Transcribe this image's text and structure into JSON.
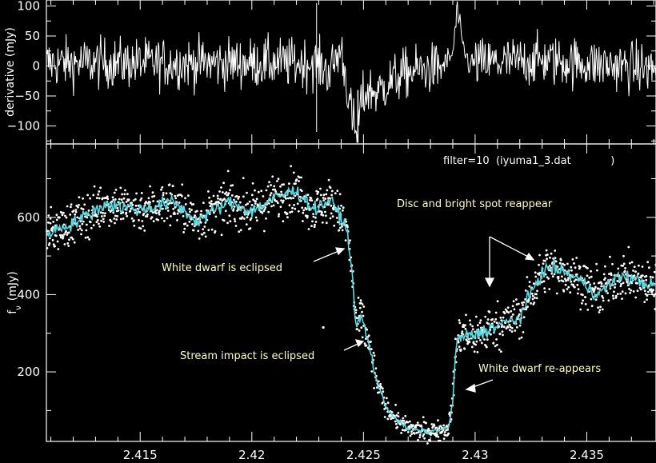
{
  "chart_data": [
    {
      "type": "line",
      "panel": "top",
      "xlabel": "",
      "ylabel": "derivative  (mJy)",
      "xlim": [
        2.4108,
        2.4381
      ],
      "ylim": [
        -130,
        110
      ],
      "yticks": [
        "100",
        "50",
        "0",
        "−50",
        "−100"
      ],
      "ytick_values": [
        100,
        50,
        0,
        -50,
        -100
      ],
      "series": [
        {
          "style": "white noisy line",
          "noise_amplitude": 38,
          "x": [
            2.4108,
            2.42,
            2.4228,
            2.4235,
            2.424,
            2.4245,
            2.4247,
            2.4249,
            2.4252,
            2.4256,
            2.4262,
            2.427,
            2.4285,
            2.429,
            2.4292,
            2.4294,
            2.4297,
            2.431,
            2.433,
            2.4381
          ],
          "values": [
            5,
            5,
            5,
            -10,
            30,
            -90,
            -120,
            -60,
            -40,
            -45,
            -25,
            -10,
            -2,
            20,
            95,
            40,
            5,
            5,
            10,
            -5
          ]
        }
      ]
    },
    {
      "type": "scatter",
      "panel": "bottom",
      "xlabel": "",
      "ylabel": "f",
      "ylabel_subscript": "ν",
      "ylabel_unit": "(mJy)",
      "xlim": [
        2.4108,
        2.4381
      ],
      "ylim": [
        20,
        790
      ],
      "xticks": [
        "2.415",
        "2.42",
        "2.425",
        "2.43",
        "2.435"
      ],
      "xtick_values": [
        2.415,
        2.42,
        2.425,
        2.43,
        2.435
      ],
      "yticks": [
        "600",
        "400",
        "200"
      ],
      "ytick_values": [
        600,
        400,
        200
      ],
      "series": [
        {
          "style": "cyan smoothed light curve",
          "color": "#5ad8e0",
          "x": [
            2.4108,
            2.412,
            2.4135,
            2.415,
            2.4165,
            2.4175,
            2.419,
            2.42,
            2.421,
            2.422,
            2.4228,
            2.4235,
            2.424,
            2.4243,
            2.4245,
            2.4247,
            2.4249,
            2.4252,
            2.4256,
            2.426,
            2.4265,
            2.427,
            2.428,
            2.4288,
            2.429,
            2.4291,
            2.4293,
            2.43,
            2.431,
            2.432,
            2.4328,
            2.4332,
            2.4335,
            2.4345,
            2.4355,
            2.4365,
            2.4381
          ],
          "values": [
            560,
            585,
            635,
            620,
            640,
            590,
            640,
            615,
            650,
            670,
            620,
            645,
            600,
            560,
            440,
            310,
            345,
            280,
            175,
            110,
            75,
            52,
            45,
            55,
            120,
            240,
            290,
            295,
            320,
            340,
            440,
            465,
            470,
            445,
            400,
            450,
            420
          ]
        },
        {
          "style": "white photometry points",
          "noise_amplitude": 28,
          "outlier": {
            "x": 2.4232,
            "y": 315
          }
        }
      ],
      "annotations": [
        {
          "text": "White dwarf is eclipsed"
        },
        {
          "text": "Stream impact is eclipsed"
        },
        {
          "text": "Disc and bright spot reappear"
        },
        {
          "text": "White dwarf re-appears"
        }
      ],
      "note": "filter=10  (iyuma1_3.dat            )"
    }
  ],
  "colors": {
    "background": "#000000",
    "axes": "#ffffff",
    "annotation_text": "#ffffc8",
    "smooth_curve": "#5ad8e0"
  }
}
